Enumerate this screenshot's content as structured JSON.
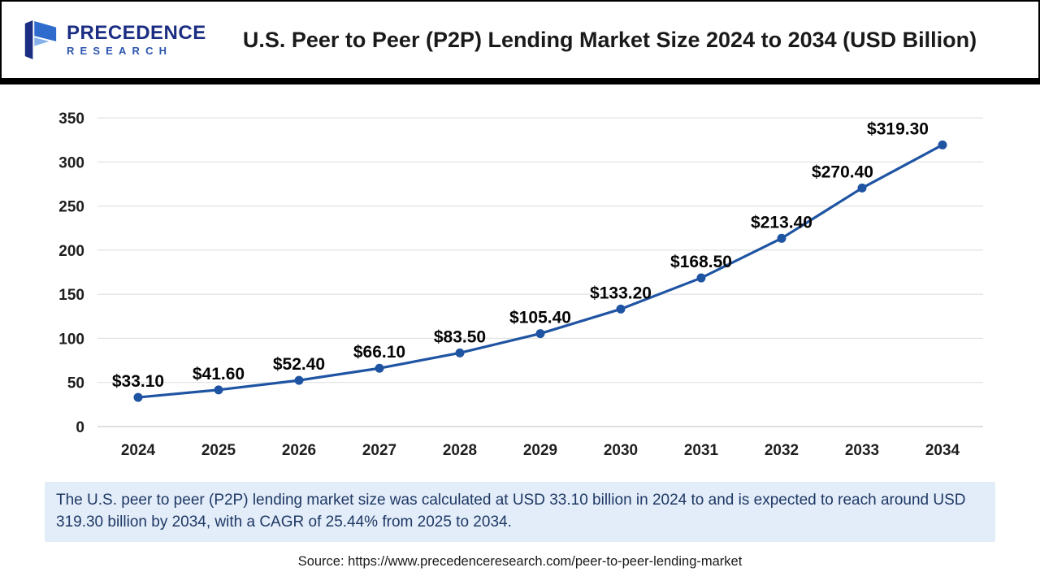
{
  "header": {
    "title": "U.S. Peer to Peer (P2P) Lending Market Size 2024 to 2034 (USD Billion)",
    "logo": {
      "line1": "PRECEDENCE",
      "line2": "RESEARCH"
    }
  },
  "chart_data": {
    "type": "line",
    "title": "U.S. Peer to Peer (P2P) Lending Market Size 2024 to 2034 (USD Billion)",
    "x": [
      2024,
      2025,
      2026,
      2027,
      2028,
      2029,
      2030,
      2031,
      2032,
      2033,
      2034
    ],
    "values": [
      33.1,
      41.6,
      52.4,
      66.1,
      83.5,
      105.4,
      133.2,
      168.5,
      213.4,
      270.4,
      319.3
    ],
    "point_labels": [
      "$33.10",
      "$41.60",
      "$52.40",
      "$66.10",
      "$83.50",
      "$105.40",
      "$133.20",
      "$168.50",
      "$213.40",
      "$270.40",
      "$319.30"
    ],
    "xlabel": "",
    "ylabel": "",
    "ylim": [
      0,
      350
    ],
    "ytick_step": 50,
    "grid": true,
    "legend": "none",
    "line_color": "#1f54a3",
    "marker_color": "#1f54a3",
    "label_color": "#050505"
  },
  "note": {
    "text": "The U.S. peer to peer (P2P) lending market size was calculated at USD 33.10 billion in 2024 to and is expected to reach around USD 319.30 billion by 2034, with a CAGR of 25.44% from 2025 to 2034."
  },
  "source": {
    "text": "Source: https://www.precedenceresearch.com/peer-to-peer-lending-market"
  }
}
